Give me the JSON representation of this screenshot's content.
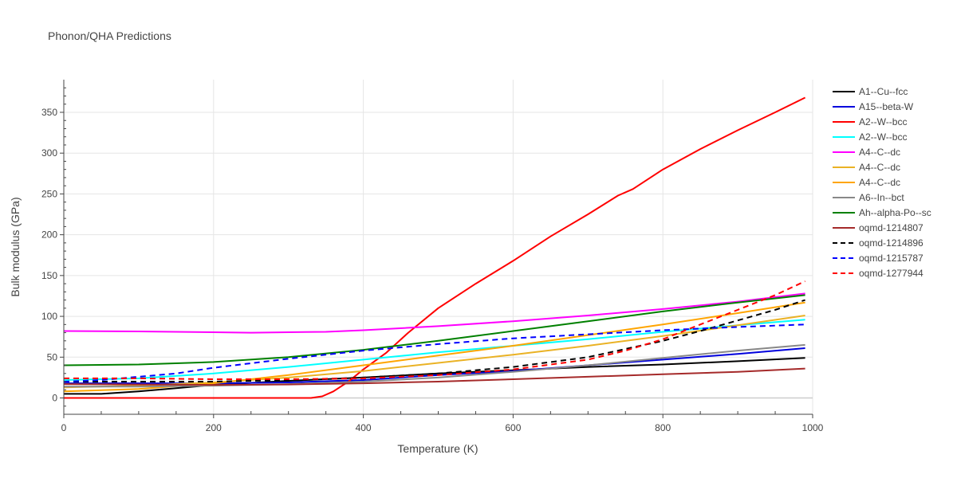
{
  "chart_data": {
    "type": "line",
    "title": "Phonon/QHA Predictions",
    "xlabel": "Temperature (K)",
    "ylabel": "Bulk modulus (GPa)",
    "xlim": [
      0,
      1000
    ],
    "ylim": [
      -20,
      390
    ],
    "x_ticks": [
      0,
      200,
      400,
      600,
      800,
      1000
    ],
    "y_ticks": [
      0,
      50,
      100,
      150,
      200,
      250,
      300,
      350
    ],
    "grid": true,
    "legend_position": "right",
    "series": [
      {
        "name": "A1--Cu--fcc",
        "color": "#000000",
        "dash": "solid",
        "x": [
          0,
          50,
          100,
          150,
          200,
          300,
          400,
          500,
          600,
          700,
          800,
          900,
          990
        ],
        "y": [
          5,
          5,
          8,
          12,
          16,
          21,
          25,
          30,
          34,
          38,
          41,
          45,
          49
        ]
      },
      {
        "name": "A15--beta-W",
        "color": "#0000dd",
        "dash": "solid",
        "x": [
          0,
          100,
          200,
          300,
          400,
          500,
          600,
          700,
          800,
          900,
          990
        ],
        "y": [
          18,
          18,
          18,
          19,
          22,
          28,
          33,
          40,
          47,
          54,
          61
        ]
      },
      {
        "name": "A2--W--bcc",
        "color": "#ff0000",
        "dash": "solid",
        "x": [
          0,
          100,
          200,
          300,
          330,
          345,
          360,
          380,
          400,
          430,
          460,
          500,
          550,
          600,
          650,
          700,
          740,
          760,
          800,
          850,
          900,
          950,
          990
        ],
        "y": [
          0,
          0,
          0,
          0,
          0,
          2,
          8,
          20,
          35,
          55,
          80,
          110,
          140,
          168,
          198,
          225,
          248,
          256,
          280,
          305,
          328,
          350,
          368
        ]
      },
      {
        "name": "A2--W--bcc",
        "color": "#00ffff",
        "dash": "solid",
        "x": [
          0,
          100,
          200,
          300,
          400,
          500,
          600,
          700,
          800,
          900,
          990
        ],
        "y": [
          22,
          24,
          30,
          38,
          47,
          56,
          64,
          72,
          81,
          89,
          96
        ]
      },
      {
        "name": "A4--C--dc",
        "color": "#ff00ff",
        "dash": "solid",
        "x": [
          0,
          100,
          200,
          250,
          300,
          350,
          400,
          500,
          600,
          700,
          800,
          900,
          990
        ],
        "y": [
          82,
          81.5,
          80.5,
          80,
          80.5,
          81,
          83,
          88,
          94,
          101,
          109,
          118,
          128
        ]
      },
      {
        "name": "A4--C--dc",
        "color": "#eab225",
        "dash": "solid",
        "x": [
          0,
          100,
          200,
          300,
          400,
          500,
          600,
          700,
          800,
          900,
          990
        ],
        "y": [
          13,
          15,
          19,
          25,
          33,
          43,
          53,
          64,
          76,
          89,
          101
        ]
      },
      {
        "name": "A4--C--dc",
        "color": "#ffa500",
        "dash": "solid",
        "x": [
          0,
          100,
          200,
          300,
          400,
          500,
          600,
          700,
          800,
          900,
          990
        ],
        "y": [
          8,
          11,
          18,
          28,
          40,
          52,
          64,
          77,
          90,
          104,
          117
        ]
      },
      {
        "name": "A6--In--bct",
        "color": "#888888",
        "dash": "solid",
        "x": [
          0,
          100,
          200,
          300,
          400,
          500,
          600,
          700,
          800,
          900,
          990
        ],
        "y": [
          14,
          14,
          15,
          17,
          20,
          25,
          32,
          40,
          49,
          58,
          65
        ]
      },
      {
        "name": "Ah--alpha-Po--sc",
        "color": "#008000",
        "dash": "solid",
        "x": [
          0,
          100,
          200,
          300,
          400,
          500,
          600,
          700,
          800,
          900,
          990
        ],
        "y": [
          40,
          41,
          44,
          50,
          59,
          70,
          82,
          94,
          106,
          117,
          126
        ]
      },
      {
        "name": "oqmd-1214807",
        "color": "#a52a2a",
        "dash": "solid",
        "x": [
          0,
          100,
          200,
          300,
          400,
          500,
          600,
          700,
          800,
          900,
          990
        ],
        "y": [
          17,
          16.5,
          16,
          16.5,
          18,
          20,
          23,
          26,
          29,
          32,
          36
        ]
      },
      {
        "name": "oqmd-1214896",
        "color": "#000000",
        "dash": "dash",
        "x": [
          0,
          100,
          200,
          300,
          400,
          500,
          600,
          700,
          800,
          850,
          900,
          950,
          990
        ],
        "y": [
          20,
          20,
          20,
          22,
          25,
          30,
          38,
          50,
          70,
          82,
          95,
          108,
          120
        ]
      },
      {
        "name": "oqmd-1215787",
        "color": "#0000ff",
        "dash": "dash",
        "x": [
          0,
          50,
          100,
          150,
          200,
          300,
          400,
          500,
          600,
          700,
          800,
          900,
          990
        ],
        "y": [
          20,
          22,
          26,
          30,
          37,
          48,
          58,
          66,
          73,
          78,
          83,
          87,
          90
        ]
      },
      {
        "name": "oqmd-1277944",
        "color": "#ff0000",
        "dash": "dash",
        "x": [
          0,
          100,
          200,
          300,
          400,
          500,
          600,
          700,
          750,
          800,
          850,
          900,
          950,
          990
        ],
        "y": [
          24,
          24,
          23,
          23,
          24,
          28,
          35,
          47,
          58,
          72,
          90,
          108,
          126,
          143
        ]
      }
    ]
  }
}
